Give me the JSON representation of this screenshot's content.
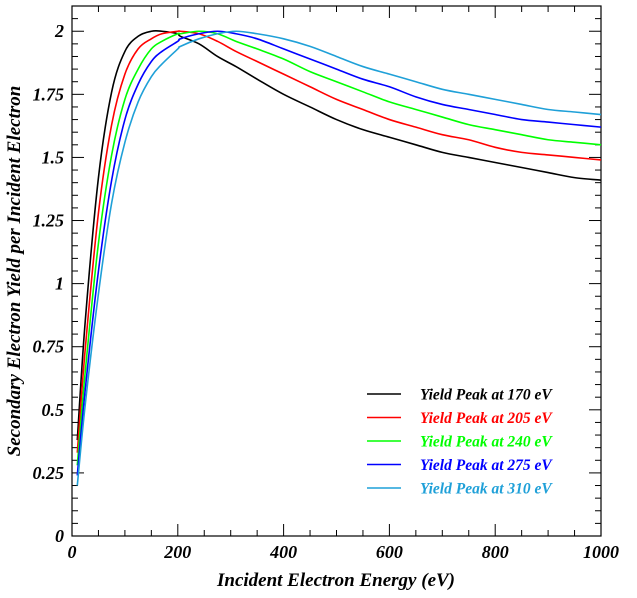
{
  "chart_data": {
    "type": "line",
    "xlabel": "Incident Electron Energy (eV)",
    "ylabel": "Secondary Electron Yield per Incident Electron",
    "xlim": [
      0,
      1000
    ],
    "ylim": [
      0,
      2.1
    ],
    "x_ticks": [
      0,
      200,
      400,
      600,
      800,
      1000
    ],
    "x_tick_labels": [
      "0",
      "200",
      "400",
      "600",
      "800",
      "1000"
    ],
    "y_ticks": [
      0,
      0.25,
      0.5,
      0.75,
      1,
      1.25,
      1.5,
      1.75,
      2
    ],
    "y_tick_labels": [
      "0",
      "0.25",
      "0.5",
      "0.75",
      "1",
      "1.25",
      "1.5",
      "1.75",
      "2"
    ],
    "grid": false,
    "legend_position": "bottom-right",
    "x": [
      10,
      25,
      50,
      75,
      100,
      125,
      150,
      170,
      200,
      205,
      240,
      275,
      310,
      350,
      400,
      450,
      500,
      550,
      600,
      650,
      700,
      750,
      800,
      850,
      900,
      950,
      1000
    ],
    "series": [
      {
        "name": "Yield Peak at 170 eV",
        "color": "#000000",
        "values": [
          0.38,
          0.85,
          1.42,
          1.76,
          1.92,
          1.98,
          2.0,
          2.0,
          1.99,
          1.98,
          1.95,
          1.9,
          1.86,
          1.81,
          1.75,
          1.7,
          1.65,
          1.61,
          1.58,
          1.55,
          1.52,
          1.5,
          1.48,
          1.46,
          1.44,
          1.42,
          1.41
        ]
      },
      {
        "name": "Yield Peak at 205 eV",
        "color": "#ff0000",
        "values": [
          0.33,
          0.74,
          1.28,
          1.63,
          1.83,
          1.93,
          1.97,
          1.99,
          2.0,
          2.0,
          1.99,
          1.96,
          1.92,
          1.88,
          1.83,
          1.78,
          1.73,
          1.69,
          1.65,
          1.62,
          1.59,
          1.57,
          1.54,
          1.52,
          1.51,
          1.5,
          1.49
        ]
      },
      {
        "name": "Yield Peak at 240 eV",
        "color": "#00ff00",
        "values": [
          0.28,
          0.65,
          1.16,
          1.51,
          1.73,
          1.85,
          1.93,
          1.96,
          1.99,
          1.99,
          2.0,
          1.99,
          1.96,
          1.93,
          1.89,
          1.84,
          1.8,
          1.76,
          1.72,
          1.69,
          1.66,
          1.63,
          1.61,
          1.59,
          1.57,
          1.56,
          1.55
        ]
      },
      {
        "name": "Yield Peak at 275 eV",
        "color": "#0000ff",
        "values": [
          0.24,
          0.58,
          1.05,
          1.41,
          1.65,
          1.79,
          1.88,
          1.92,
          1.96,
          1.97,
          1.99,
          2.0,
          1.99,
          1.97,
          1.93,
          1.89,
          1.85,
          1.81,
          1.78,
          1.74,
          1.71,
          1.69,
          1.67,
          1.65,
          1.64,
          1.63,
          1.62
        ]
      },
      {
        "name": "Yield Peak at 310 eV",
        "color": "#1fa0d8",
        "values": [
          0.2,
          0.52,
          0.96,
          1.32,
          1.56,
          1.72,
          1.82,
          1.87,
          1.93,
          1.94,
          1.97,
          1.99,
          2.0,
          1.99,
          1.97,
          1.94,
          1.9,
          1.86,
          1.83,
          1.8,
          1.77,
          1.75,
          1.73,
          1.71,
          1.69,
          1.68,
          1.67
        ]
      }
    ]
  }
}
